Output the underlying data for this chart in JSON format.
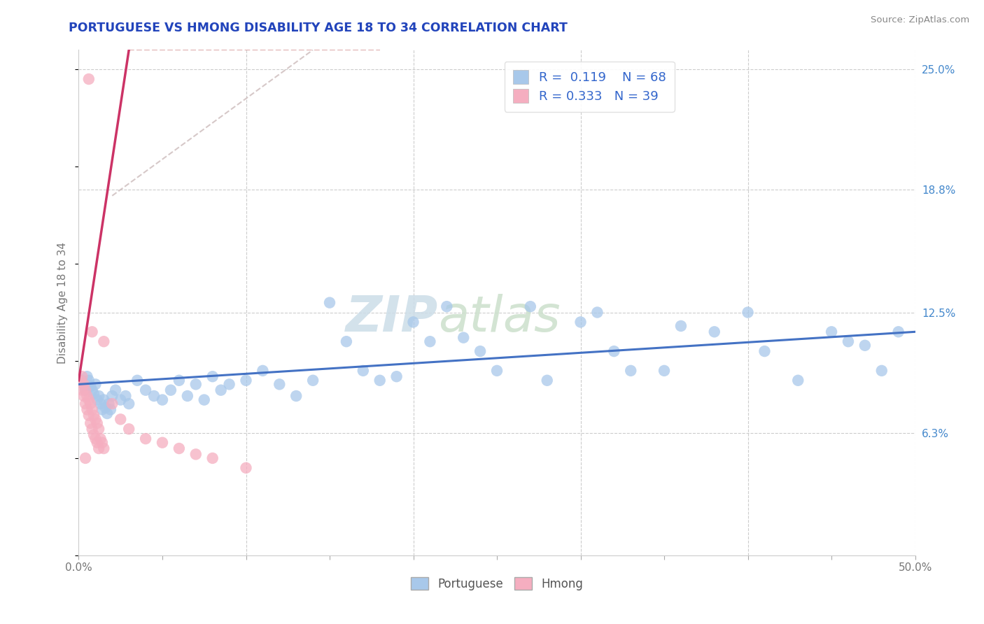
{
  "title": "PORTUGUESE VS HMONG DISABILITY AGE 18 TO 34 CORRELATION CHART",
  "source": "Source: ZipAtlas.com",
  "ylabel": "Disability Age 18 to 34",
  "xlim": [
    0.0,
    0.5
  ],
  "ylim": [
    0.0,
    0.26
  ],
  "portuguese_R": "0.119",
  "portuguese_N": "68",
  "hmong_R": "0.333",
  "hmong_N": "39",
  "portuguese_color": "#a8c8ea",
  "hmong_color": "#f5aec0",
  "portuguese_line_color": "#4472c4",
  "hmong_line_color": "#cc3366",
  "hmong_dash_color": "#ddaaaa",
  "background_color": "#ffffff",
  "grid_color": "#cccccc",
  "title_color": "#2244bb",
  "axis_label_color": "#777777",
  "right_tick_color": "#4488cc",
  "watermark_color": "#dde8f0",
  "port_x": [
    0.002,
    0.003,
    0.004,
    0.005,
    0.006,
    0.007,
    0.008,
    0.009,
    0.01,
    0.011,
    0.012,
    0.013,
    0.014,
    0.015,
    0.016,
    0.017,
    0.018,
    0.019,
    0.02,
    0.022,
    0.025,
    0.028,
    0.03,
    0.035,
    0.04,
    0.045,
    0.05,
    0.055,
    0.06,
    0.065,
    0.07,
    0.075,
    0.08,
    0.085,
    0.09,
    0.1,
    0.11,
    0.12,
    0.13,
    0.14,
    0.15,
    0.16,
    0.17,
    0.18,
    0.19,
    0.2,
    0.21,
    0.22,
    0.23,
    0.24,
    0.25,
    0.27,
    0.28,
    0.3,
    0.31,
    0.32,
    0.33,
    0.35,
    0.36,
    0.38,
    0.4,
    0.41,
    0.43,
    0.45,
    0.46,
    0.47,
    0.48,
    0.49
  ],
  "port_y": [
    0.09,
    0.088,
    0.085,
    0.092,
    0.09,
    0.087,
    0.085,
    0.083,
    0.088,
    0.08,
    0.082,
    0.078,
    0.075,
    0.08,
    0.076,
    0.073,
    0.078,
    0.075,
    0.082,
    0.085,
    0.08,
    0.082,
    0.078,
    0.09,
    0.085,
    0.082,
    0.08,
    0.085,
    0.09,
    0.082,
    0.088,
    0.08,
    0.092,
    0.085,
    0.088,
    0.09,
    0.095,
    0.088,
    0.082,
    0.09,
    0.13,
    0.11,
    0.095,
    0.09,
    0.092,
    0.12,
    0.11,
    0.128,
    0.112,
    0.105,
    0.095,
    0.128,
    0.09,
    0.12,
    0.125,
    0.105,
    0.095,
    0.095,
    0.118,
    0.115,
    0.125,
    0.105,
    0.09,
    0.115,
    0.11,
    0.108,
    0.095,
    0.115
  ],
  "hmong_x": [
    0.001,
    0.002,
    0.002,
    0.003,
    0.003,
    0.004,
    0.004,
    0.005,
    0.005,
    0.006,
    0.006,
    0.007,
    0.007,
    0.008,
    0.008,
    0.009,
    0.009,
    0.01,
    0.01,
    0.011,
    0.011,
    0.012,
    0.012,
    0.013,
    0.014,
    0.015,
    0.015,
    0.02,
    0.025,
    0.03,
    0.04,
    0.05,
    0.06,
    0.07,
    0.08,
    0.1,
    0.006,
    0.008,
    0.004
  ],
  "hmong_y": [
    0.09,
    0.092,
    0.085,
    0.088,
    0.082,
    0.085,
    0.078,
    0.082,
    0.075,
    0.08,
    0.072,
    0.078,
    0.068,
    0.075,
    0.065,
    0.072,
    0.062,
    0.07,
    0.06,
    0.068,
    0.058,
    0.065,
    0.055,
    0.06,
    0.058,
    0.055,
    0.11,
    0.078,
    0.07,
    0.065,
    0.06,
    0.058,
    0.055,
    0.052,
    0.05,
    0.045,
    0.245,
    0.115,
    0.05
  ]
}
